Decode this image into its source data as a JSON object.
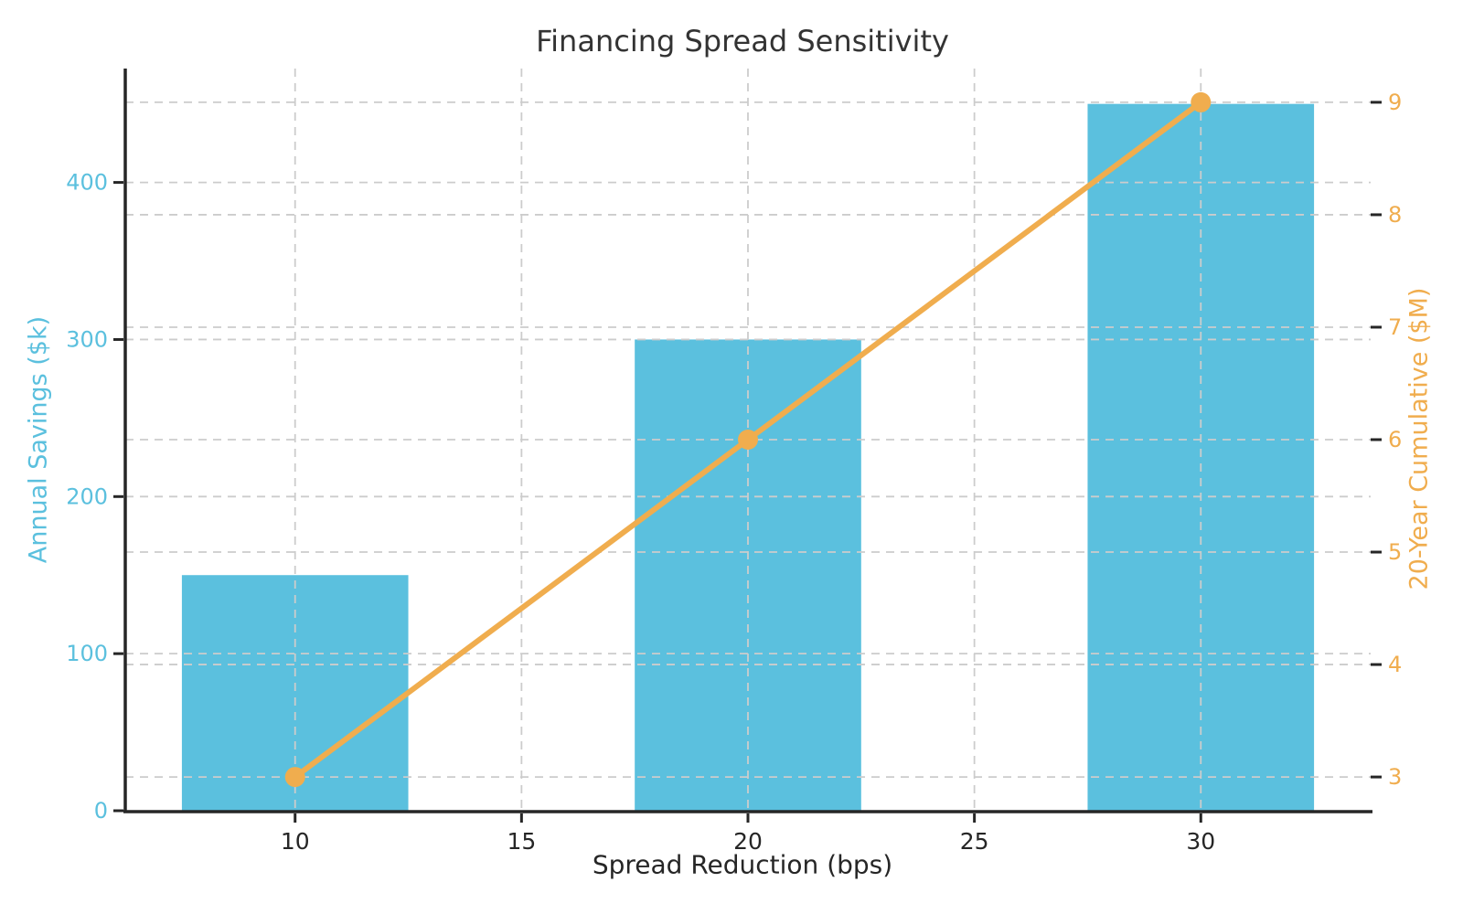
{
  "chart_data": {
    "type": "bar",
    "title": "Financing Spread Sensitivity",
    "xlabel": "Spread Reduction (bps)",
    "x": [
      10,
      20,
      30
    ],
    "series": [
      {
        "name": "Annual Savings ($k)",
        "kind": "bar",
        "axis": "left",
        "values": [
          150,
          300,
          450
        ],
        "color": "#5BC0DE",
        "bar_width_bps": 5
      },
      {
        "name": "20-Year Cumulative ($M)",
        "kind": "line",
        "axis": "right",
        "values": [
          3,
          6,
          9
        ],
        "color": "#F0AD4E",
        "marker": "circle"
      }
    ],
    "axes": {
      "x": {
        "label": "Spread Reduction (bps)",
        "ticks": [
          10,
          15,
          20,
          25,
          30
        ],
        "lim": [
          6.25,
          33.75
        ],
        "tick_label_color": "#262626"
      },
      "left": {
        "label": "Annual Savings ($k)",
        "ticks": [
          0,
          100,
          200,
          300,
          400
        ],
        "lim": [
          0,
          472.5
        ],
        "color": "#5BC0DE"
      },
      "right": {
        "label": "20-Year Cumulative ($M)",
        "ticks": [
          3,
          4,
          5,
          6,
          7,
          8,
          9
        ],
        "lim": [
          2.7,
          9.3
        ],
        "color": "#F0AD4E"
      }
    },
    "grid": {
      "show": true,
      "color": "#CCCCCC",
      "style": "dashed"
    },
    "legend": false,
    "background": "#FFFFFF",
    "spine_color": "#262626"
  }
}
